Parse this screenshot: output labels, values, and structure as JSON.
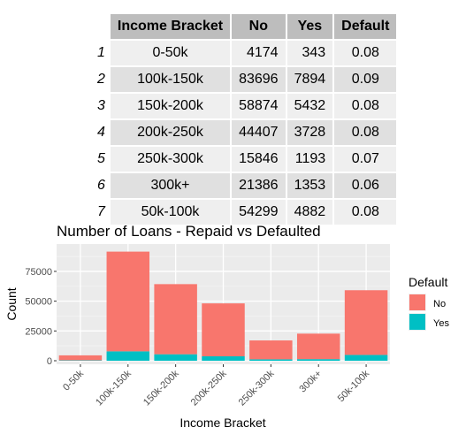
{
  "table": {
    "headers": [
      "Income Bracket",
      "No",
      "Yes",
      "Default"
    ],
    "rows": [
      {
        "idx": "1",
        "bracket": "0-50k",
        "no": "4174",
        "yes": "343",
        "default": "0.08"
      },
      {
        "idx": "2",
        "bracket": "100k-150k",
        "no": "83696",
        "yes": "7894",
        "default": "0.09"
      },
      {
        "idx": "3",
        "bracket": "150k-200k",
        "no": "58874",
        "yes": "5432",
        "default": "0.08"
      },
      {
        "idx": "4",
        "bracket": "200k-250k",
        "no": "44407",
        "yes": "3728",
        "default": "0.08"
      },
      {
        "idx": "5",
        "bracket": "250k-300k",
        "no": "15846",
        "yes": "1193",
        "default": "0.07"
      },
      {
        "idx": "6",
        "bracket": "300k+",
        "no": "21386",
        "yes": "1353",
        "default": "0.06"
      },
      {
        "idx": "7",
        "bracket": "50k-100k",
        "no": "54299",
        "yes": "4882",
        "default": "0.08"
      }
    ]
  },
  "chart_data": {
    "type": "bar",
    "stacked": true,
    "title": "Number of Loans - Repaid vs Defaulted",
    "xlabel": "Income Bracket",
    "ylabel": "Count",
    "categories": [
      "0-50k",
      "100k-150k",
      "150k-200k",
      "200k-250k",
      "250k-300k",
      "300k+",
      "50k-100k"
    ],
    "series": [
      {
        "name": "No",
        "color": "#F8766D",
        "values": [
          4174,
          83696,
          58874,
          44407,
          15846,
          21386,
          54299
        ]
      },
      {
        "name": "Yes",
        "color": "#00BFC4",
        "values": [
          343,
          7894,
          5432,
          3728,
          1193,
          1353,
          4882
        ]
      }
    ],
    "yticks": [
      0,
      25000,
      50000,
      75000
    ],
    "ytick_labels": [
      "0",
      "25000",
      "50000",
      "75000"
    ],
    "ylim": [
      0,
      95000
    ],
    "legend": {
      "title": "Default",
      "position": "right"
    },
    "grid": true,
    "panel_background": "#EBEBEB"
  }
}
